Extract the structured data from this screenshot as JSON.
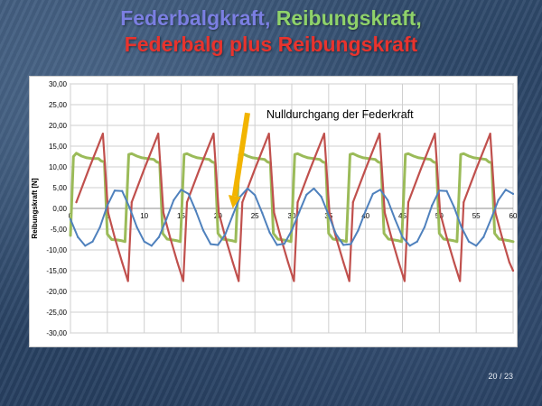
{
  "slide": {
    "title_line1_part1": "Federbalgkraft,",
    "title_line1_part2": "Reibungskraft,",
    "title_line2": "Federbalg plus Reibungskraft",
    "page_number": "20 / 23"
  },
  "colors": {
    "title_blue": "#7b7fe2",
    "title_green": "#8fd26a",
    "title_red": "#e8332d",
    "series_blue": "#4f81bd",
    "series_green": "#9bbb59",
    "series_red": "#c0504d",
    "arrow": "#f2b400"
  },
  "chart_data": {
    "type": "line",
    "ylabel": "Reibungskraft  [N]",
    "xlim": [
      0,
      60
    ],
    "ylim": [
      -30,
      30
    ],
    "x_ticks": [
      0,
      5,
      10,
      15,
      20,
      25,
      30,
      35,
      40,
      45,
      50,
      55,
      60
    ],
    "y_ticks": [
      30,
      25,
      20,
      15,
      10,
      5,
      0,
      -5,
      -10,
      -15,
      -20,
      -25,
      -30
    ],
    "y_tick_labels": [
      "30,00",
      "25,00",
      "20,00",
      "15,00",
      "10,00",
      "5,00",
      "0,00",
      "-5,00",
      "-10,00",
      "-15,00",
      "-20,00",
      "-25,00",
      "-30,00"
    ],
    "grid": true,
    "period": 7.5,
    "annotation": {
      "text": "Nulldurchgang der Federkraft",
      "arrow_start": [
        24,
        23
      ],
      "arrow_end": [
        22,
        0
      ]
    },
    "series": [
      {
        "color": "#4f81bd",
        "x": [
          0,
          1,
          2,
          3,
          4,
          5,
          6,
          7,
          8,
          9,
          10,
          11,
          12,
          13,
          14,
          15,
          16,
          17,
          18,
          19,
          20,
          21,
          22,
          23,
          24,
          25,
          26,
          27,
          28,
          29,
          30,
          31,
          32,
          33,
          34,
          35,
          36,
          37,
          38,
          39,
          40,
          41,
          42,
          43,
          44,
          45,
          46,
          47,
          48,
          49,
          50,
          51,
          52,
          53,
          54,
          55,
          56,
          57,
          58,
          59,
          60
        ],
        "values": [
          -2.6,
          -6.9,
          -9.0,
          -8.0,
          -4.5,
          0.7,
          4.3,
          4.2,
          0.3,
          -4.5,
          -8.0,
          -9.0,
          -6.9,
          -2.6,
          2.0,
          4.5,
          3.5,
          -0.6,
          -5.3,
          -8.6,
          -8.8,
          -6.2,
          -1.6,
          2.8,
          4.8,
          3.2,
          -1.1,
          -5.8,
          -8.8,
          -8.5,
          -5.3,
          -0.9,
          3.3,
          4.8,
          2.8,
          -1.6,
          -6.2,
          -8.8,
          -8.6,
          -5.3,
          -0.6,
          3.5,
          4.5,
          2.0,
          -2.6,
          -6.9,
          -9.0,
          -8.0,
          -4.5,
          0.7,
          4.3,
          4.2,
          0.3,
          -4.5,
          -8.0,
          -9.0,
          -6.9,
          -2.6,
          2.0,
          4.5,
          3.5
        ]
      },
      {
        "color": "#9bbb59",
        "x": [
          0,
          0.4,
          0.8,
          1.5,
          2.2,
          3.0,
          3.8,
          4.2,
          4.6,
          5.0,
          5.6,
          6.4,
          7.0,
          7.4,
          7.9,
          8.3,
          9.0,
          9.7,
          10.5,
          11.3,
          11.7,
          12.1,
          12.5,
          13.1,
          13.9,
          14.5,
          14.9,
          15.4,
          15.8,
          16.5,
          17.2,
          18.0,
          18.8,
          19.2,
          19.6,
          20.0,
          20.6,
          21.4,
          22.0,
          22.4,
          22.9,
          23.3,
          24.0,
          24.7,
          25.5,
          26.3,
          26.7,
          27.1,
          27.5,
          28.1,
          28.9,
          29.5,
          29.9,
          30.4,
          30.8,
          31.5,
          32.2,
          33.0,
          33.8,
          34.2,
          34.6,
          35.0,
          35.6,
          36.4,
          37.0,
          37.4,
          37.9,
          38.3,
          39.0,
          39.7,
          40.5,
          41.3,
          41.7,
          42.1,
          42.5,
          43.1,
          43.9,
          44.5,
          44.9,
          45.4,
          45.8,
          46.5,
          47.2,
          48.0,
          48.8,
          49.2,
          49.6,
          50.0,
          50.6,
          51.4,
          52.0,
          52.4,
          52.9,
          53.3,
          54.0,
          54.7,
          55.5,
          56.3,
          56.7,
          57.1,
          57.5,
          58.1,
          58.9,
          59.5,
          60.0
        ],
        "values": [
          -6.5,
          12.5,
          13.3,
          12.6,
          12.2,
          12.0,
          12.0,
          11.4,
          11.2,
          -6.2,
          -7.5,
          -7.6,
          -7.8,
          -8.0,
          13.0,
          13.2,
          12.6,
          12.2,
          12.0,
          11.8,
          11.2,
          11.0,
          -6.0,
          -7.4,
          -7.6,
          -7.8,
          -8.0,
          13.0,
          13.2,
          12.6,
          12.2,
          12.0,
          11.8,
          11.2,
          11.0,
          -6.0,
          -7.4,
          -7.6,
          -7.8,
          -8.0,
          13.0,
          13.2,
          12.6,
          12.2,
          12.0,
          11.8,
          11.2,
          11.0,
          -6.0,
          -7.4,
          -7.6,
          -7.8,
          -8.0,
          13.0,
          13.2,
          12.6,
          12.2,
          12.0,
          11.8,
          11.2,
          11.0,
          -6.0,
          -7.4,
          -7.6,
          -7.8,
          -8.0,
          13.0,
          13.2,
          12.6,
          12.2,
          12.0,
          11.8,
          11.2,
          11.0,
          -6.0,
          -7.4,
          -7.6,
          -7.8,
          -8.0,
          13.0,
          13.2,
          12.6,
          12.2,
          12.0,
          11.8,
          11.2,
          11.0,
          -6.0,
          -7.4,
          -7.6,
          -7.8,
          -8.0,
          13.0,
          13.2,
          12.6,
          12.2,
          12.0,
          11.8,
          11.2,
          11.0,
          -6.0,
          -7.4,
          -7.6,
          -7.8,
          -8.0
        ]
      },
      {
        "color": "#c0504d",
        "x": [
          0.8,
          2.5,
          4.4,
          5.1,
          6.0,
          7.0,
          7.8,
          8.3,
          10.0,
          11.9,
          12.6,
          13.5,
          14.5,
          15.3,
          15.8,
          17.5,
          19.4,
          20.1,
          21.0,
          22.0,
          22.8,
          23.3,
          25.0,
          26.9,
          27.6,
          28.5,
          29.5,
          30.3,
          30.8,
          32.5,
          34.4,
          35.1,
          36.0,
          37.0,
          37.8,
          38.3,
          40.0,
          41.9,
          42.6,
          43.5,
          44.5,
          45.3,
          45.8,
          47.5,
          49.4,
          50.1,
          51.0,
          52.0,
          52.8,
          53.3,
          55.0,
          56.9,
          57.6,
          58.5,
          59.5,
          60.0
        ],
        "values": [
          1.5,
          9.5,
          18.0,
          -1.0,
          -7.0,
          -13.0,
          -17.5,
          1.5,
          9.5,
          18.0,
          -1.0,
          -7.0,
          -13.0,
          -17.5,
          1.5,
          9.5,
          18.0,
          -1.0,
          -7.0,
          -13.0,
          -17.5,
          1.5,
          9.5,
          18.0,
          -1.0,
          -7.0,
          -13.0,
          -17.5,
          1.5,
          9.5,
          18.0,
          -1.0,
          -7.0,
          -13.0,
          -17.5,
          1.5,
          9.5,
          18.0,
          -1.0,
          -7.0,
          -13.0,
          -17.5,
          1.5,
          9.5,
          18.0,
          -1.0,
          -7.0,
          -13.0,
          -17.5,
          1.5,
          9.5,
          18.0,
          -1.0,
          -7.0,
          -13.0,
          -15.0
        ]
      }
    ]
  }
}
